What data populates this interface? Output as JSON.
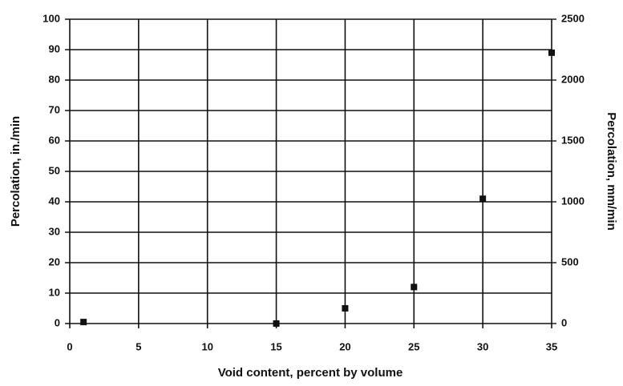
{
  "chart_data": {
    "type": "scatter",
    "x_label": "Void content, percent by volume",
    "y_label": "Percolation, in./min",
    "y2_label": "Percolation, mm/min",
    "series": [
      {
        "name": "Percolation",
        "color": "#111111",
        "x": [
          1,
          15,
          20,
          25,
          30,
          35
        ],
        "values": [
          0.5,
          0,
          5,
          12,
          41,
          89
        ]
      }
    ],
    "xlim": [
      0,
      35
    ],
    "xticks": [
      0,
      5,
      10,
      15,
      20,
      25,
      30,
      35
    ],
    "ylim": [
      0,
      100
    ],
    "yticks": [
      0,
      10,
      20,
      30,
      40,
      50,
      60,
      70,
      80,
      90,
      100
    ],
    "y2lim": [
      0,
      2500
    ],
    "y2ticks": [
      0,
      500,
      1000,
      1500,
      2000,
      2500
    ],
    "grid": true
  }
}
